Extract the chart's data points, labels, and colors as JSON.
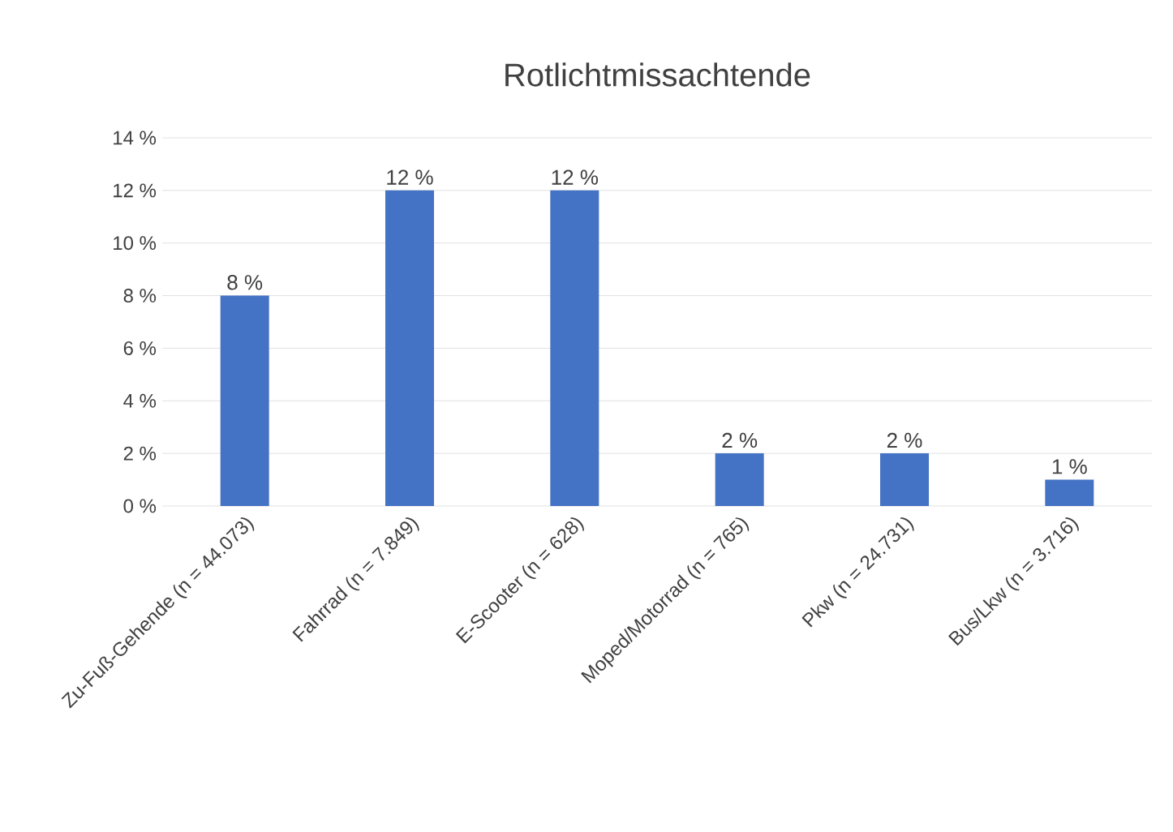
{
  "chart_data": {
    "type": "bar",
    "title": "Rotlichtmissachtende",
    "categories": [
      "Zu-Fuß-Gehende (n = 44.073)",
      "Fahrrad (n = 7.849)",
      "E-Scooter (n = 628)",
      "Moped/Motorrad (n = 765)",
      "Pkw (n = 24.731)",
      "Bus/Lkw (n = 3.716)"
    ],
    "values": [
      8,
      12,
      12,
      2,
      2,
      1
    ],
    "value_labels": [
      "8 %",
      "12 %",
      "12 %",
      "2 %",
      "2 %",
      "1 %"
    ],
    "color": "#4472c4",
    "ylim": [
      0,
      14
    ],
    "yticks": [
      {
        "value": 0,
        "label": "0 %"
      },
      {
        "value": 2,
        "label": "2 %"
      },
      {
        "value": 4,
        "label": "4 %"
      },
      {
        "value": 6,
        "label": "6 %"
      },
      {
        "value": 8,
        "label": "8 %"
      },
      {
        "value": 10,
        "label": "10 %"
      },
      {
        "value": 12,
        "label": "12 %"
      },
      {
        "value": 14,
        "label": "14 %"
      }
    ],
    "grid": "y"
  }
}
